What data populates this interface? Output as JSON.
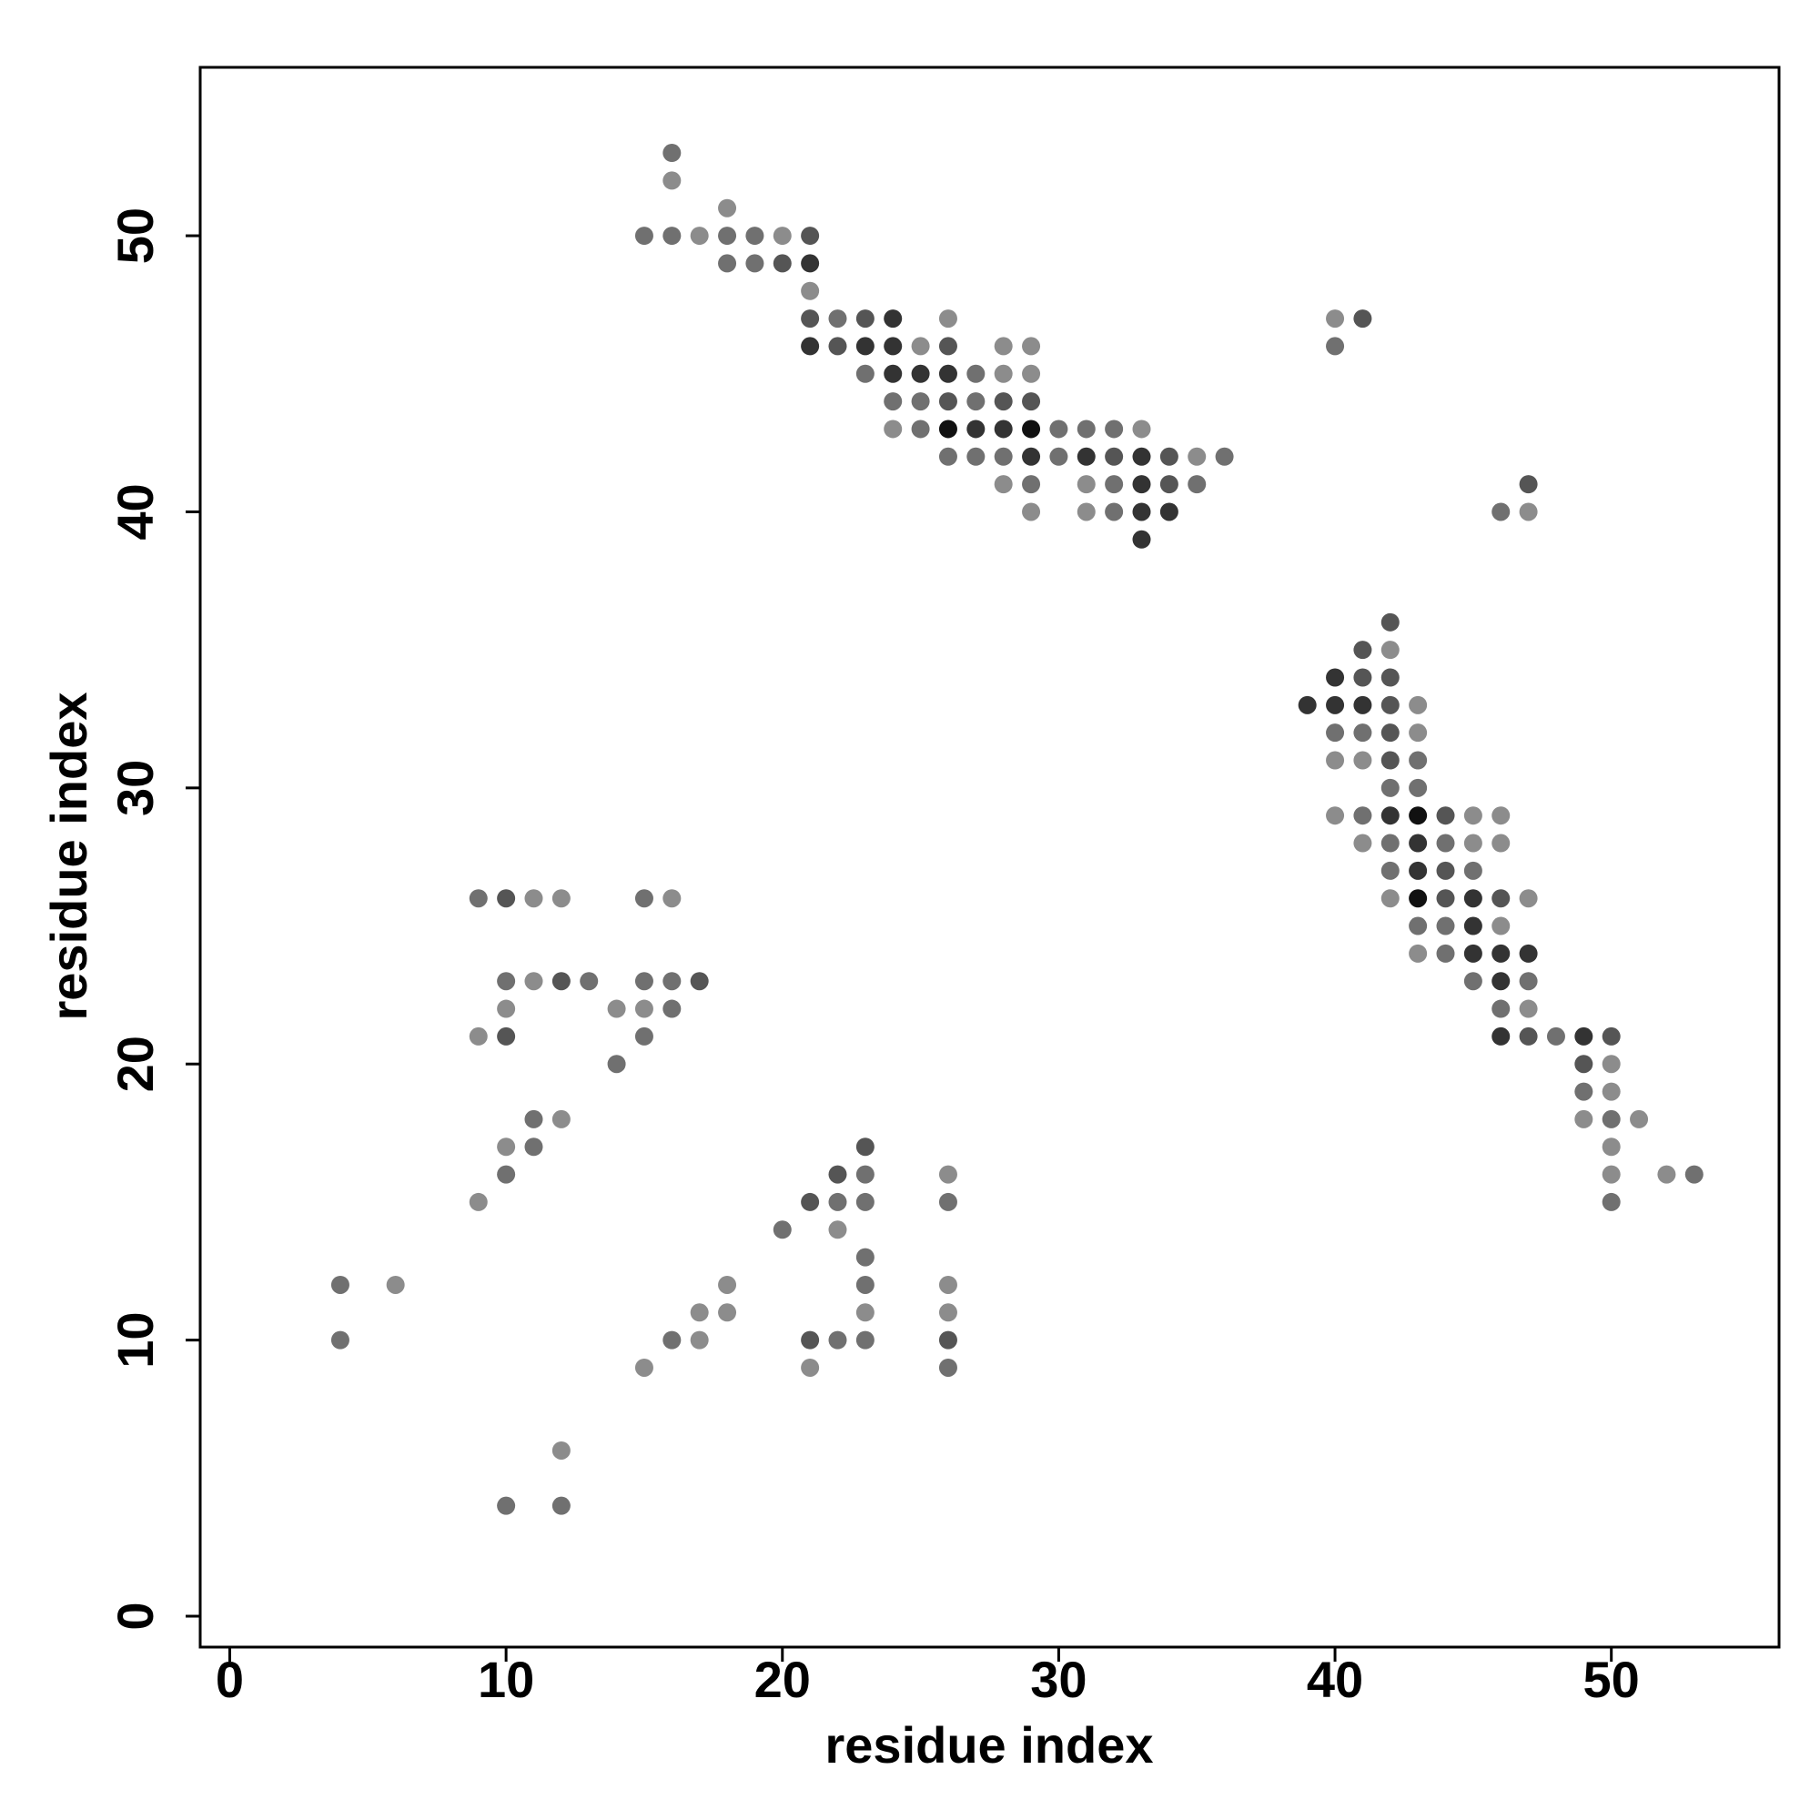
{
  "chart_data": {
    "type": "scatter",
    "xlabel": "residue index",
    "ylabel": "residue index",
    "xlim": [
      -1.07,
      56.07
    ],
    "ylim": [
      -1.12,
      56.1
    ],
    "xticks": [
      0,
      10,
      20,
      30,
      40,
      50
    ],
    "yticks": [
      0,
      10,
      20,
      30,
      40,
      50
    ],
    "x": [
      16,
      16,
      18,
      15,
      16,
      17,
      18,
      19,
      20,
      21,
      18,
      19,
      20,
      21,
      21,
      21,
      22,
      23,
      24,
      26,
      21,
      22,
      23,
      24,
      25,
      26,
      28,
      29,
      23,
      24,
      25,
      26,
      27,
      28,
      29,
      24,
      25,
      26,
      27,
      28,
      29,
      24,
      25,
      26,
      27,
      28,
      29,
      30,
      31,
      32,
      33,
      26,
      27,
      28,
      29,
      30,
      31,
      32,
      33,
      34,
      35,
      36,
      28,
      29,
      31,
      32,
      33,
      34,
      35,
      29,
      31,
      32,
      33,
      34,
      33,
      40,
      41,
      40,
      47,
      46,
      47,
      42,
      41,
      42,
      40,
      41,
      42,
      39,
      40,
      41,
      42,
      43,
      40,
      41,
      42,
      43,
      40,
      41,
      42,
      43,
      42,
      43,
      40,
      41,
      42,
      43,
      44,
      45,
      46,
      41,
      42,
      43,
      44,
      45,
      46,
      42,
      43,
      44,
      45,
      42,
      43,
      44,
      45,
      46,
      47,
      43,
      44,
      45,
      46,
      43,
      44,
      45,
      46,
      47,
      45,
      46,
      47,
      46,
      47,
      46,
      47,
      48,
      49,
      50,
      49,
      50,
      49,
      50,
      49,
      50,
      51,
      50,
      50,
      52,
      53,
      50,
      9,
      10,
      11,
      12,
      15,
      16,
      10,
      11,
      12,
      13,
      15,
      16,
      17,
      10,
      14,
      15,
      16,
      9,
      10,
      15,
      14,
      11,
      12,
      10,
      11,
      10,
      9,
      4,
      6,
      4,
      12,
      10,
      12,
      23,
      22,
      23,
      26,
      21,
      22,
      23,
      26,
      20,
      22,
      23,
      18,
      23,
      26,
      17,
      18,
      23,
      26,
      16,
      17,
      21,
      22,
      23,
      26,
      15,
      21,
      26
    ],
    "y": [
      53,
      52,
      51,
      50,
      50,
      50,
      50,
      50,
      50,
      50,
      49,
      49,
      49,
      49,
      48,
      47,
      47,
      47,
      47,
      47,
      46,
      46,
      46,
      46,
      46,
      46,
      46,
      46,
      45,
      45,
      45,
      45,
      45,
      45,
      45,
      44,
      44,
      44,
      44,
      44,
      44,
      43,
      43,
      43,
      43,
      43,
      43,
      43,
      43,
      43,
      43,
      42,
      42,
      42,
      42,
      42,
      42,
      42,
      42,
      42,
      42,
      42,
      41,
      41,
      41,
      41,
      41,
      41,
      41,
      40,
      40,
      40,
      40,
      40,
      39,
      47,
      47,
      46,
      41,
      40,
      40,
      36,
      35,
      35,
      34,
      34,
      34,
      33,
      33,
      33,
      33,
      33,
      32,
      32,
      32,
      32,
      31,
      31,
      31,
      31,
      30,
      30,
      29,
      29,
      29,
      29,
      29,
      29,
      29,
      28,
      28,
      28,
      28,
      28,
      28,
      27,
      27,
      27,
      27,
      26,
      26,
      26,
      26,
      26,
      26,
      25,
      25,
      25,
      25,
      24,
      24,
      24,
      24,
      24,
      23,
      23,
      23,
      22,
      22,
      21,
      21,
      21,
      21,
      21,
      20,
      20,
      19,
      19,
      18,
      18,
      18,
      17,
      16,
      16,
      16,
      15,
      26,
      26,
      26,
      26,
      26,
      26,
      23,
      23,
      23,
      23,
      23,
      23,
      23,
      22,
      22,
      22,
      22,
      21,
      21,
      21,
      20,
      18,
      18,
      17,
      17,
      16,
      15,
      12,
      12,
      10,
      6,
      4,
      4,
      17,
      16,
      16,
      16,
      15,
      15,
      15,
      15,
      14,
      14,
      13,
      12,
      12,
      12,
      11,
      11,
      11,
      11,
      10,
      10,
      10,
      10,
      10,
      10,
      9,
      9,
      9
    ],
    "colors": [
      "#707070",
      "#8c8c8c",
      "#8c8c8c",
      "#707070",
      "#707070",
      "#8c8c8c",
      "#707070",
      "#707070",
      "#8c8c8c",
      "#555555",
      "#707070",
      "#707070",
      "#555555",
      "#333333",
      "#8c8c8c",
      "#555555",
      "#707070",
      "#555555",
      "#333333",
      "#8c8c8c",
      "#333333",
      "#555555",
      "#333333",
      "#333333",
      "#8c8c8c",
      "#555555",
      "#8c8c8c",
      "#8c8c8c",
      "#707070",
      "#333333",
      "#333333",
      "#333333",
      "#707070",
      "#8c8c8c",
      "#8c8c8c",
      "#707070",
      "#707070",
      "#555555",
      "#707070",
      "#555555",
      "#555555",
      "#8c8c8c",
      "#707070",
      "#111111",
      "#333333",
      "#333333",
      "#111111",
      "#707070",
      "#707070",
      "#707070",
      "#8c8c8c",
      "#707070",
      "#707070",
      "#707070",
      "#333333",
      "#707070",
      "#333333",
      "#555555",
      "#333333",
      "#555555",
      "#8c8c8c",
      "#707070",
      "#8c8c8c",
      "#707070",
      "#8c8c8c",
      "#707070",
      "#333333",
      "#555555",
      "#707070",
      "#8c8c8c",
      "#8c8c8c",
      "#707070",
      "#333333",
      "#333333",
      "#333333",
      "#8c8c8c",
      "#555555",
      "#707070",
      "#555555",
      "#707070",
      "#8c8c8c",
      "#555555",
      "#555555",
      "#8c8c8c",
      "#333333",
      "#555555",
      "#555555",
      "#333333",
      "#333333",
      "#333333",
      "#555555",
      "#8c8c8c",
      "#707070",
      "#707070",
      "#555555",
      "#8c8c8c",
      "#8c8c8c",
      "#8c8c8c",
      "#555555",
      "#707070",
      "#707070",
      "#707070",
      "#8c8c8c",
      "#707070",
      "#333333",
      "#111111",
      "#555555",
      "#8c8c8c",
      "#8c8c8c",
      "#8c8c8c",
      "#707070",
      "#333333",
      "#707070",
      "#8c8c8c",
      "#8c8c8c",
      "#707070",
      "#333333",
      "#555555",
      "#707070",
      "#8c8c8c",
      "#111111",
      "#555555",
      "#333333",
      "#555555",
      "#8c8c8c",
      "#707070",
      "#707070",
      "#333333",
      "#8c8c8c",
      "#8c8c8c",
      "#707070",
      "#333333",
      "#333333",
      "#333333",
      "#707070",
      "#333333",
      "#707070",
      "#707070",
      "#8c8c8c",
      "#333333",
      "#555555",
      "#707070",
      "#333333",
      "#555555",
      "#555555",
      "#8c8c8c",
      "#707070",
      "#8c8c8c",
      "#8c8c8c",
      "#707070",
      "#8c8c8c",
      "#8c8c8c",
      "#8c8c8c",
      "#8c8c8c",
      "#707070",
      "#707070",
      "#707070",
      "#555555",
      "#8c8c8c",
      "#8c8c8c",
      "#707070",
      "#8c8c8c",
      "#707070",
      "#8c8c8c",
      "#555555",
      "#707070",
      "#707070",
      "#707070",
      "#555555",
      "#8c8c8c",
      "#8c8c8c",
      "#8c8c8c",
      "#707070",
      "#8c8c8c",
      "#555555",
      "#707070",
      "#707070",
      "#707070",
      "#8c8c8c",
      "#8c8c8c",
      "#707070",
      "#707070",
      "#8c8c8c",
      "#707070",
      "#8c8c8c",
      "#707070",
      "#8c8c8c",
      "#707070",
      "#707070",
      "#555555",
      "#555555",
      "#707070",
      "#8c8c8c",
      "#555555",
      "#707070",
      "#707070",
      "#707070",
      "#707070",
      "#8c8c8c",
      "#707070",
      "#8c8c8c",
      "#707070",
      "#8c8c8c",
      "#8c8c8c",
      "#8c8c8c",
      "#8c8c8c",
      "#8c8c8c",
      "#707070",
      "#8c8c8c",
      "#555555",
      "#707070",
      "#707070",
      "#555555",
      "#8c8c8c",
      "#8c8c8c",
      "#707070"
    ]
  }
}
